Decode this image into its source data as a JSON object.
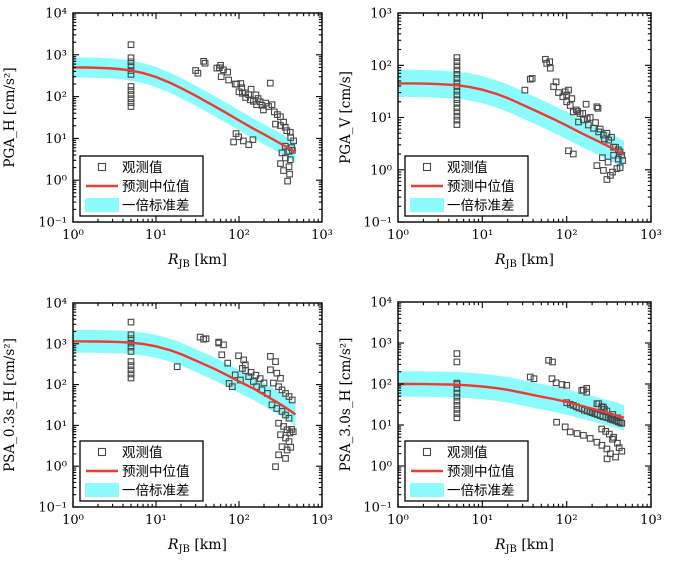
{
  "figure": {
    "title": "",
    "xlabel": {
      "symbol": "R",
      "subscript": "JB",
      "unit": "[km]"
    },
    "legend": {
      "observed_label": "观测值",
      "median_label": "预测中位值",
      "band_label": "一倍标准差"
    },
    "colors": {
      "band": "#8cfbfb",
      "median_line": "#ee3a34",
      "marker_stroke": "#474747",
      "axis": "#000000",
      "legend_bg": "#ffffff"
    }
  },
  "chart_data": [
    {
      "id": "pga-h",
      "type": "scatter",
      "ylabel": "PGA_H [cm/s²]",
      "xlabel": "R_JB [km]",
      "xlim": [
        1,
        1000
      ],
      "ylim": [
        0.1,
        10000
      ],
      "xtick_exponents": [
        0,
        1,
        2,
        3
      ],
      "ytick_exponents": [
        -1,
        0,
        1,
        2,
        3,
        4
      ],
      "grid": false,
      "legend_position": "lower-left",
      "sigma_log10": 0.24,
      "median": {
        "r": [
          1,
          1.5,
          2,
          3,
          4,
          5,
          7,
          10,
          15,
          20,
          30,
          50,
          70,
          100,
          150,
          200,
          300,
          400,
          480
        ],
        "v": [
          500,
          496,
          488,
          470,
          446,
          418,
          365,
          295,
          212,
          160,
          105,
          60,
          41,
          27,
          17,
          12.5,
          8,
          5.8,
          4.6
        ]
      },
      "points": [
        [
          5,
          1740
        ],
        [
          5,
          850
        ],
        [
          5,
          680
        ],
        [
          5,
          540
        ],
        [
          5,
          420
        ],
        [
          5,
          340
        ],
        [
          5,
          174
        ],
        [
          5,
          140
        ],
        [
          5,
          112
        ],
        [
          5,
          89
        ],
        [
          5,
          72
        ],
        [
          5,
          58
        ],
        [
          30,
          420
        ],
        [
          32,
          363
        ],
        [
          37.5,
          700
        ],
        [
          39,
          630
        ],
        [
          54,
          480
        ],
        [
          58,
          490
        ],
        [
          60,
          560
        ],
        [
          65,
          437
        ],
        [
          73,
          385
        ],
        [
          61,
          299
        ],
        [
          75,
          250
        ],
        [
          90,
          200
        ],
        [
          94,
          198
        ],
        [
          105,
          206
        ],
        [
          108,
          163
        ],
        [
          100,
          130
        ],
        [
          110,
          120
        ],
        [
          119,
          123
        ],
        [
          131,
          111
        ],
        [
          137,
          84
        ],
        [
          149,
          77
        ],
        [
          163,
          64
        ],
        [
          170,
          90
        ],
        [
          189,
          62
        ],
        [
          197,
          48
        ],
        [
          227,
          58
        ],
        [
          238,
          210
        ],
        [
          250,
          64
        ],
        [
          266,
          43
        ],
        [
          290,
          37
        ],
        [
          315,
          33
        ],
        [
          160,
          110
        ],
        [
          140,
          150
        ],
        [
          120,
          95
        ],
        [
          180,
          75
        ],
        [
          210,
          70
        ],
        [
          86,
          8.2
        ],
        [
          99,
          10.9
        ],
        [
          113,
          8.7
        ],
        [
          131,
          7.1
        ],
        [
          147,
          9.3
        ],
        [
          92,
          13
        ],
        [
          275,
          22
        ],
        [
          316,
          20.4
        ],
        [
          345,
          24.6
        ],
        [
          360,
          18.5
        ],
        [
          377,
          15.3
        ],
        [
          415,
          14
        ],
        [
          420,
          10.5
        ],
        [
          455,
          8.7
        ],
        [
          360,
          6.5
        ],
        [
          400,
          4.9
        ],
        [
          330,
          4.5
        ],
        [
          362,
          3.4
        ],
        [
          415,
          3.1
        ],
        [
          316,
          2.5
        ],
        [
          400,
          2.1
        ],
        [
          345,
          1.7
        ],
        [
          407,
          1.4
        ],
        [
          385,
          0.95
        ],
        [
          430,
          6
        ],
        [
          440,
          5.2
        ]
      ]
    },
    {
      "id": "pga-v",
      "type": "scatter",
      "ylabel": "PGA_V [cm/s]",
      "xlabel": "R_JB [km]",
      "xlim": [
        1,
        1000
      ],
      "ylim": [
        0.1,
        1000
      ],
      "xtick_exponents": [
        0,
        1,
        2,
        3
      ],
      "ytick_exponents": [
        -1,
        0,
        1,
        2,
        3
      ],
      "grid": false,
      "legend_position": "lower-left",
      "sigma_log10": 0.26,
      "median": {
        "r": [
          1,
          1.5,
          2,
          3,
          4,
          5,
          7,
          10,
          15,
          20,
          30,
          50,
          70,
          100,
          150,
          200,
          300,
          400,
          480
        ],
        "v": [
          45,
          45,
          44.5,
          43.5,
          42.5,
          41.5,
          38.5,
          34,
          28,
          23.5,
          17.5,
          12,
          9.3,
          7,
          5,
          4,
          2.9,
          2.3,
          1.95
        ]
      },
      "points": [
        [
          5,
          140
        ],
        [
          5,
          117
        ],
        [
          5,
          97
        ],
        [
          5,
          81
        ],
        [
          5,
          67
        ],
        [
          5,
          56
        ],
        [
          5,
          46
        ],
        [
          5,
          39
        ],
        [
          5,
          32
        ],
        [
          5,
          27
        ],
        [
          5,
          22
        ],
        [
          5,
          18.6
        ],
        [
          5,
          15.3
        ],
        [
          5,
          12.8
        ],
        [
          5,
          10.6
        ],
        [
          5,
          8.9
        ],
        [
          5,
          7.3
        ],
        [
          58,
          109
        ],
        [
          64,
          88
        ],
        [
          56,
          130
        ],
        [
          63,
          117
        ],
        [
          75,
          48
        ],
        [
          37,
          54
        ],
        [
          32,
          33.5
        ],
        [
          39,
          56
        ],
        [
          105,
          33.5
        ],
        [
          100,
          27
        ],
        [
          115,
          23
        ],
        [
          235,
          15
        ],
        [
          228,
          16
        ],
        [
          170,
          18
        ],
        [
          70,
          39
        ],
        [
          80,
          30
        ],
        [
          90,
          25
        ],
        [
          96,
          31
        ],
        [
          100,
          20
        ],
        [
          110,
          17
        ],
        [
          120,
          12.8
        ],
        [
          130,
          14
        ],
        [
          144,
          11.9
        ],
        [
          158,
          9
        ],
        [
          181,
          7.2
        ],
        [
          190,
          10
        ],
        [
          208,
          6.2
        ],
        [
          220,
          8
        ],
        [
          240,
          5.3
        ],
        [
          273,
          4.6
        ],
        [
          300,
          5
        ],
        [
          315,
          3.7
        ],
        [
          340,
          4.2
        ],
        [
          360,
          2.7
        ],
        [
          380,
          2.7
        ],
        [
          410,
          2.4
        ],
        [
          428,
          2.2
        ],
        [
          450,
          1.9
        ],
        [
          135,
          13
        ],
        [
          155,
          12
        ],
        [
          175,
          9.5
        ],
        [
          250,
          6
        ],
        [
          280,
          3.9
        ],
        [
          105,
          2.3
        ],
        [
          120,
          2.0
        ],
        [
          138,
          8.2
        ],
        [
          228,
          1.2
        ],
        [
          273,
          0.97
        ],
        [
          330,
          0.78
        ],
        [
          394,
          1.05
        ],
        [
          360,
          1.9
        ],
        [
          410,
          1.6
        ],
        [
          310,
          1.4
        ],
        [
          350,
          0.9
        ],
        [
          300,
          0.65
        ],
        [
          265,
          1.7
        ],
        [
          430,
          1.1
        ],
        [
          460,
          1.5
        ]
      ]
    },
    {
      "id": "psa-0-3s-h",
      "type": "scatter",
      "ylabel": "PSA_0.3s_H [cm/s²]",
      "xlabel": "R_JB [km]",
      "xlim": [
        1,
        1000
      ],
      "ylim": [
        0.1,
        10000
      ],
      "xtick_exponents": [
        0,
        1,
        2,
        3
      ],
      "ytick_exponents": [
        -1,
        0,
        1,
        2,
        3,
        4
      ],
      "grid": false,
      "legend_position": "lower-left",
      "sigma_log10": 0.28,
      "median": {
        "r": [
          1,
          1.5,
          2,
          3,
          4,
          5,
          7,
          10,
          15,
          20,
          30,
          50,
          70,
          100,
          150,
          200,
          300,
          400,
          480
        ],
        "v": [
          1150,
          1148,
          1140,
          1120,
          1095,
          1065,
          990,
          870,
          690,
          560,
          390,
          245,
          175,
          120,
          80,
          57,
          35,
          24,
          18.5
        ]
      },
      "points": [
        [
          5,
          3400
        ],
        [
          5,
          1670
        ],
        [
          5,
          1330
        ],
        [
          5,
          1040
        ],
        [
          5,
          830
        ],
        [
          5,
          650
        ],
        [
          5,
          367
        ],
        [
          5,
          293
        ],
        [
          5,
          230
        ],
        [
          5,
          183
        ],
        [
          5,
          145
        ],
        [
          18,
          275
        ],
        [
          34,
          1460
        ],
        [
          37.5,
          1300
        ],
        [
          40,
          1330
        ],
        [
          57,
          1100
        ],
        [
          57,
          1040
        ],
        [
          65,
          944
        ],
        [
          62,
          537
        ],
        [
          73,
          336
        ],
        [
          99,
          507
        ],
        [
          114,
          404
        ],
        [
          119,
          305
        ],
        [
          239,
          490
        ],
        [
          275,
          367
        ],
        [
          90,
          173
        ],
        [
          104,
          130
        ],
        [
          131,
          157
        ],
        [
          149,
          119
        ],
        [
          163,
          89
        ],
        [
          189,
          74
        ],
        [
          220,
          61
        ],
        [
          239,
          230
        ],
        [
          285,
          190
        ],
        [
          316,
          143
        ],
        [
          260,
          109
        ],
        [
          300,
          89
        ],
        [
          330,
          74
        ],
        [
          363,
          61
        ],
        [
          400,
          51
        ],
        [
          437,
          42
        ],
        [
          76,
          107
        ],
        [
          83,
          89
        ],
        [
          140,
          200
        ],
        [
          160,
          170
        ],
        [
          180,
          140
        ],
        [
          200,
          110
        ],
        [
          120,
          220
        ],
        [
          110,
          250
        ],
        [
          250,
          32
        ],
        [
          285,
          26
        ],
        [
          330,
          22
        ],
        [
          363,
          18
        ],
        [
          400,
          15
        ],
        [
          300,
          11.3
        ],
        [
          345,
          9.4
        ],
        [
          380,
          7.8
        ],
        [
          316,
          5.9
        ],
        [
          363,
          4.9
        ],
        [
          400,
          4
        ],
        [
          330,
          3
        ],
        [
          380,
          2.5
        ],
        [
          300,
          1.9
        ],
        [
          363,
          1.55
        ],
        [
          275,
          0.97
        ],
        [
          410,
          6.5
        ],
        [
          430,
          8
        ],
        [
          450,
          7
        ],
        [
          420,
          2.9
        ]
      ]
    },
    {
      "id": "psa-3-0s-h",
      "type": "scatter",
      "ylabel": "PSA_3.0s_H [cm/s²]",
      "xlabel": "R_JB [km]",
      "xlim": [
        1,
        1000
      ],
      "ylim": [
        0.1,
        10000
      ],
      "xtick_exponents": [
        0,
        1,
        2,
        3
      ],
      "ytick_exponents": [
        -1,
        0,
        1,
        2,
        3,
        4
      ],
      "grid": false,
      "legend_position": "lower-left",
      "sigma_log10": 0.31,
      "median": {
        "r": [
          1,
          1.5,
          2,
          3,
          4,
          5,
          7,
          10,
          15,
          20,
          30,
          50,
          70,
          100,
          150,
          200,
          300,
          400,
          480
        ],
        "v": [
          100,
          100,
          99.5,
          98.5,
          97.5,
          96,
          92.5,
          87,
          79,
          72,
          61,
          49,
          43,
          36.5,
          29,
          25,
          20,
          17,
          15
        ]
      },
      "points": [
        [
          5,
          550
        ],
        [
          5,
          345
        ],
        [
          5,
          105
        ],
        [
          5,
          97
        ],
        [
          5,
          78
        ],
        [
          5,
          60
        ],
        [
          5,
          48
        ],
        [
          5,
          38
        ],
        [
          5,
          30
        ],
        [
          5,
          24
        ],
        [
          5,
          19
        ],
        [
          5,
          15
        ],
        [
          61,
          378
        ],
        [
          68,
          344
        ],
        [
          37,
          148
        ],
        [
          41,
          135
        ],
        [
          67,
          135
        ],
        [
          75,
          107
        ],
        [
          88,
          97
        ],
        [
          151,
          70
        ],
        [
          173,
          63
        ],
        [
          100,
          93
        ],
        [
          158,
          71
        ],
        [
          173,
          78
        ],
        [
          100,
          35
        ],
        [
          110,
          32
        ],
        [
          120,
          30
        ],
        [
          130,
          28
        ],
        [
          140,
          26
        ],
        [
          152,
          25
        ],
        [
          162,
          23
        ],
        [
          175,
          22
        ],
        [
          190,
          21
        ],
        [
          200,
          20
        ],
        [
          215,
          19
        ],
        [
          230,
          18
        ],
        [
          250,
          17
        ],
        [
          270,
          16
        ],
        [
          290,
          15.5
        ],
        [
          310,
          15
        ],
        [
          330,
          14
        ],
        [
          350,
          13.5
        ],
        [
          370,
          13
        ],
        [
          390,
          12.5
        ],
        [
          410,
          12
        ],
        [
          430,
          11.5
        ],
        [
          450,
          11
        ],
        [
          240,
          33
        ],
        [
          260,
          28
        ],
        [
          280,
          24
        ],
        [
          300,
          22
        ],
        [
          352,
          18
        ],
        [
          400,
          15
        ],
        [
          228,
          33
        ],
        [
          273,
          27
        ],
        [
          76,
          11.7
        ],
        [
          96,
          9
        ],
        [
          110,
          6.8
        ],
        [
          133,
          6.2
        ],
        [
          158,
          5.6
        ],
        [
          190,
          4.7
        ],
        [
          228,
          3.8
        ],
        [
          262,
          3.2
        ],
        [
          300,
          2.6
        ],
        [
          330,
          2
        ],
        [
          380,
          1.65
        ],
        [
          302,
          1.5
        ],
        [
          350,
          4.5
        ],
        [
          400,
          3.6
        ],
        [
          420,
          2.8
        ],
        [
          450,
          2.3
        ],
        [
          260,
          8
        ],
        [
          290,
          7
        ],
        [
          320,
          6
        ],
        [
          360,
          5
        ]
      ]
    }
  ]
}
